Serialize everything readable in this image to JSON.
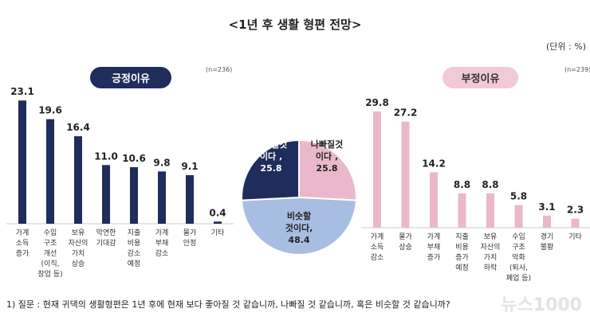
{
  "title": "<1년 후 생활 형편 전망>",
  "unit": "(단위 : %)",
  "footnote": "1) 질문 : 현재 귀댁의 생활형편은 1년 후에 현재 보다 좋아질 것 같습니까, 나빠질 것 같습니까, 혹은 비슷할 것 같습니까?",
  "watermark": "뉴스1000",
  "colors": {
    "navy": "#1f2d5c",
    "pink": "#eab8ca",
    "lightblue": "#a8bde2"
  },
  "chart_data": [
    {
      "type": "bar",
      "title": "긍정이유",
      "note": "(n=236)",
      "categories": [
        "가계\n소득\n증가",
        "수입\n구조\n개선\n(이직,\n창업 등)",
        "보유\n자산의\n가치\n상승",
        "막연한\n기대감",
        "지출\n비용\n감소\n예정",
        "가계\n부채\n감소",
        "물가\n안정",
        "기타"
      ],
      "values": [
        23.1,
        19.6,
        16.4,
        11.0,
        10.6,
        9.8,
        9.1,
        0.4
      ],
      "color": "#1f2d5c"
    },
    {
      "type": "pie",
      "slices": [
        {
          "label": "나빠질것\n이다 ,\n25.8",
          "value": 25.8,
          "color": "#eab8ca"
        },
        {
          "label": "비슷할\n것이다,\n48.4",
          "value": 48.4,
          "color": "#a8bde2"
        },
        {
          "label": "좋아질것\n이다 ,\n25.8",
          "value": 25.8,
          "color": "#1f2d5c"
        }
      ]
    },
    {
      "type": "bar",
      "title": "부정이유",
      "note": "(n=239)",
      "categories": [
        "가계\n소득\n감소",
        "물가\n상승",
        "가계\n부채\n증가",
        "지출\n비용\n증가\n예정",
        "보유\n자산의\n가치\n하락",
        "수입\n구조\n악화\n(퇴사,\n폐업 등)",
        "경기\n불황",
        "기타"
      ],
      "values": [
        29.8,
        27.2,
        14.2,
        8.8,
        8.8,
        5.8,
        3.1,
        2.3
      ],
      "color": "#eab8ca"
    }
  ]
}
